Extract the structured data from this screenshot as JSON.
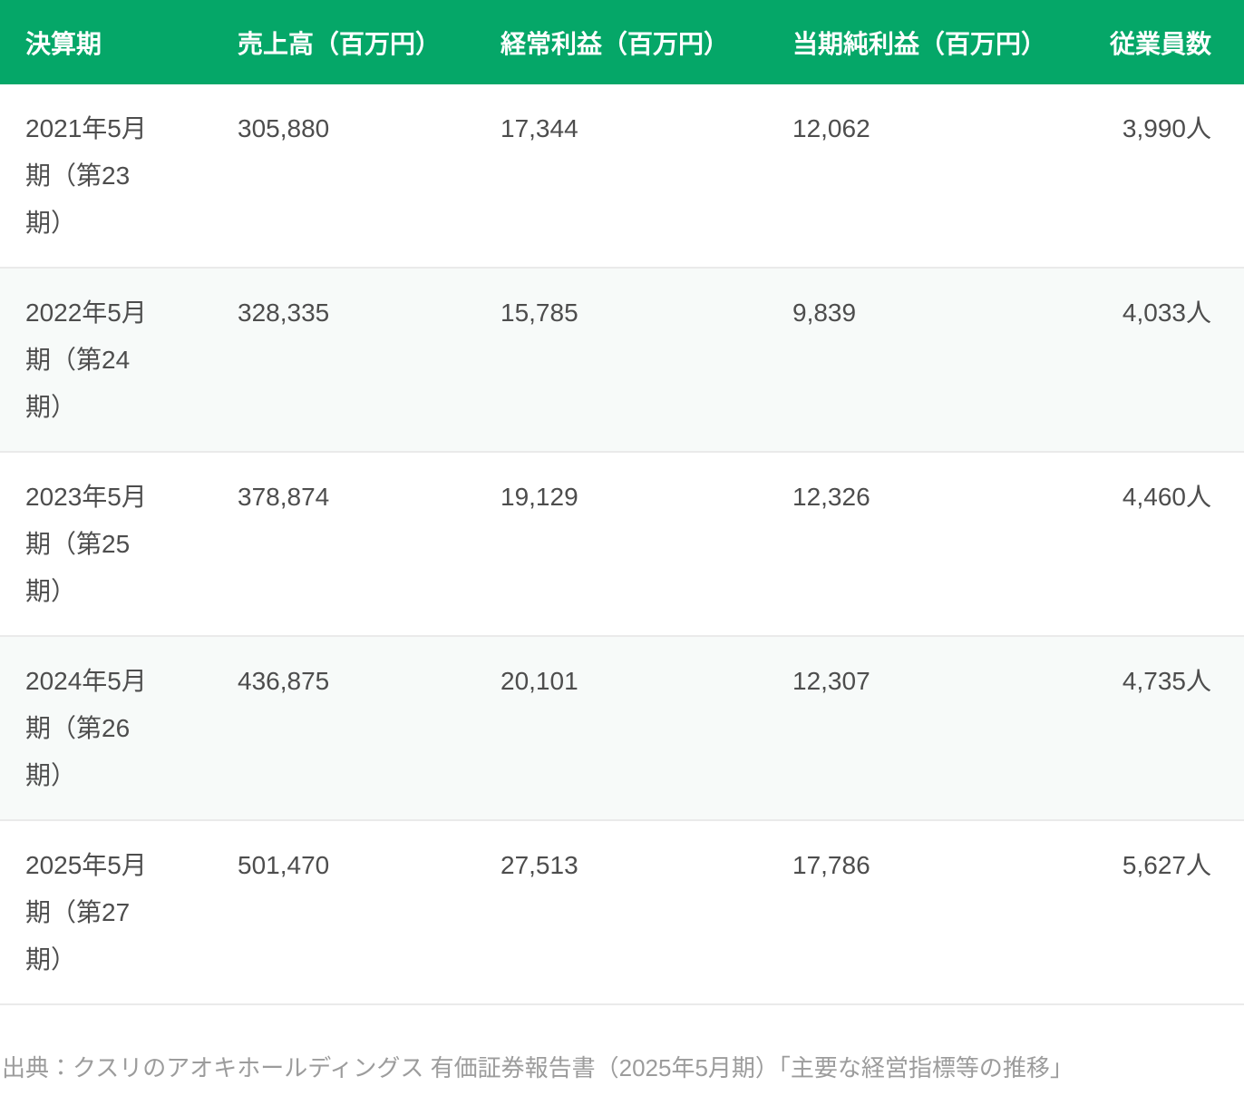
{
  "accent_color": "#05a768",
  "stripe_color": "#f7faf9",
  "border_color": "#eaeaea",
  "table": {
    "headers": [
      "決算期",
      "売上高（百万円）",
      "経常利益（百万円）",
      "当期純利益（百万円）",
      "従業員数"
    ],
    "rows": [
      {
        "period": "2021年5月期（第23期）",
        "sales": "305,880",
        "ordinary_profit": "17,344",
        "net_income": "12,062",
        "employees": "3,990人"
      },
      {
        "period": "2022年5月期（第24期）",
        "sales": "328,335",
        "ordinary_profit": "15,785",
        "net_income": "9,839",
        "employees": "4,033人"
      },
      {
        "period": "2023年5月期（第25期）",
        "sales": "378,874",
        "ordinary_profit": "19,129",
        "net_income": "12,326",
        "employees": "4,460人"
      },
      {
        "period": "2024年5月期（第26期）",
        "sales": "436,875",
        "ordinary_profit": "20,101",
        "net_income": "12,307",
        "employees": "4,735人"
      },
      {
        "period": "2025年5月期（第27期）",
        "sales": "501,470",
        "ordinary_profit": "27,513",
        "net_income": "17,786",
        "employees": "5,627人"
      }
    ]
  },
  "source_note": "出典：クスリのアオキホールディングス 有価証券報告書（2025年5月期）「主要な経営指標等の推移」",
  "chart_data": {
    "type": "table",
    "columns": [
      "決算期",
      "売上高（百万円）",
      "経常利益（百万円）",
      "当期純利益（百万円）",
      "従業員数"
    ],
    "categories": [
      "2021年5月期（第23期）",
      "2022年5月期（第24期）",
      "2023年5月期（第25期）",
      "2024年5月期（第26期）",
      "2025年5月期（第27期）"
    ],
    "series": [
      {
        "name": "売上高（百万円）",
        "values": [
          305880,
          328335,
          378874,
          436875,
          501470
        ]
      },
      {
        "name": "経常利益（百万円）",
        "values": [
          17344,
          15785,
          19129,
          20101,
          27513
        ]
      },
      {
        "name": "当期純利益（百万円）",
        "values": [
          12062,
          9839,
          12326,
          12307,
          17786
        ]
      },
      {
        "name": "従業員数",
        "values": [
          3990,
          4033,
          4460,
          4735,
          5627
        ]
      }
    ],
    "source": "出典：クスリのアオキホールディングス 有価証券報告書（2025年5月期）「主要な経営指標等の推移」"
  }
}
